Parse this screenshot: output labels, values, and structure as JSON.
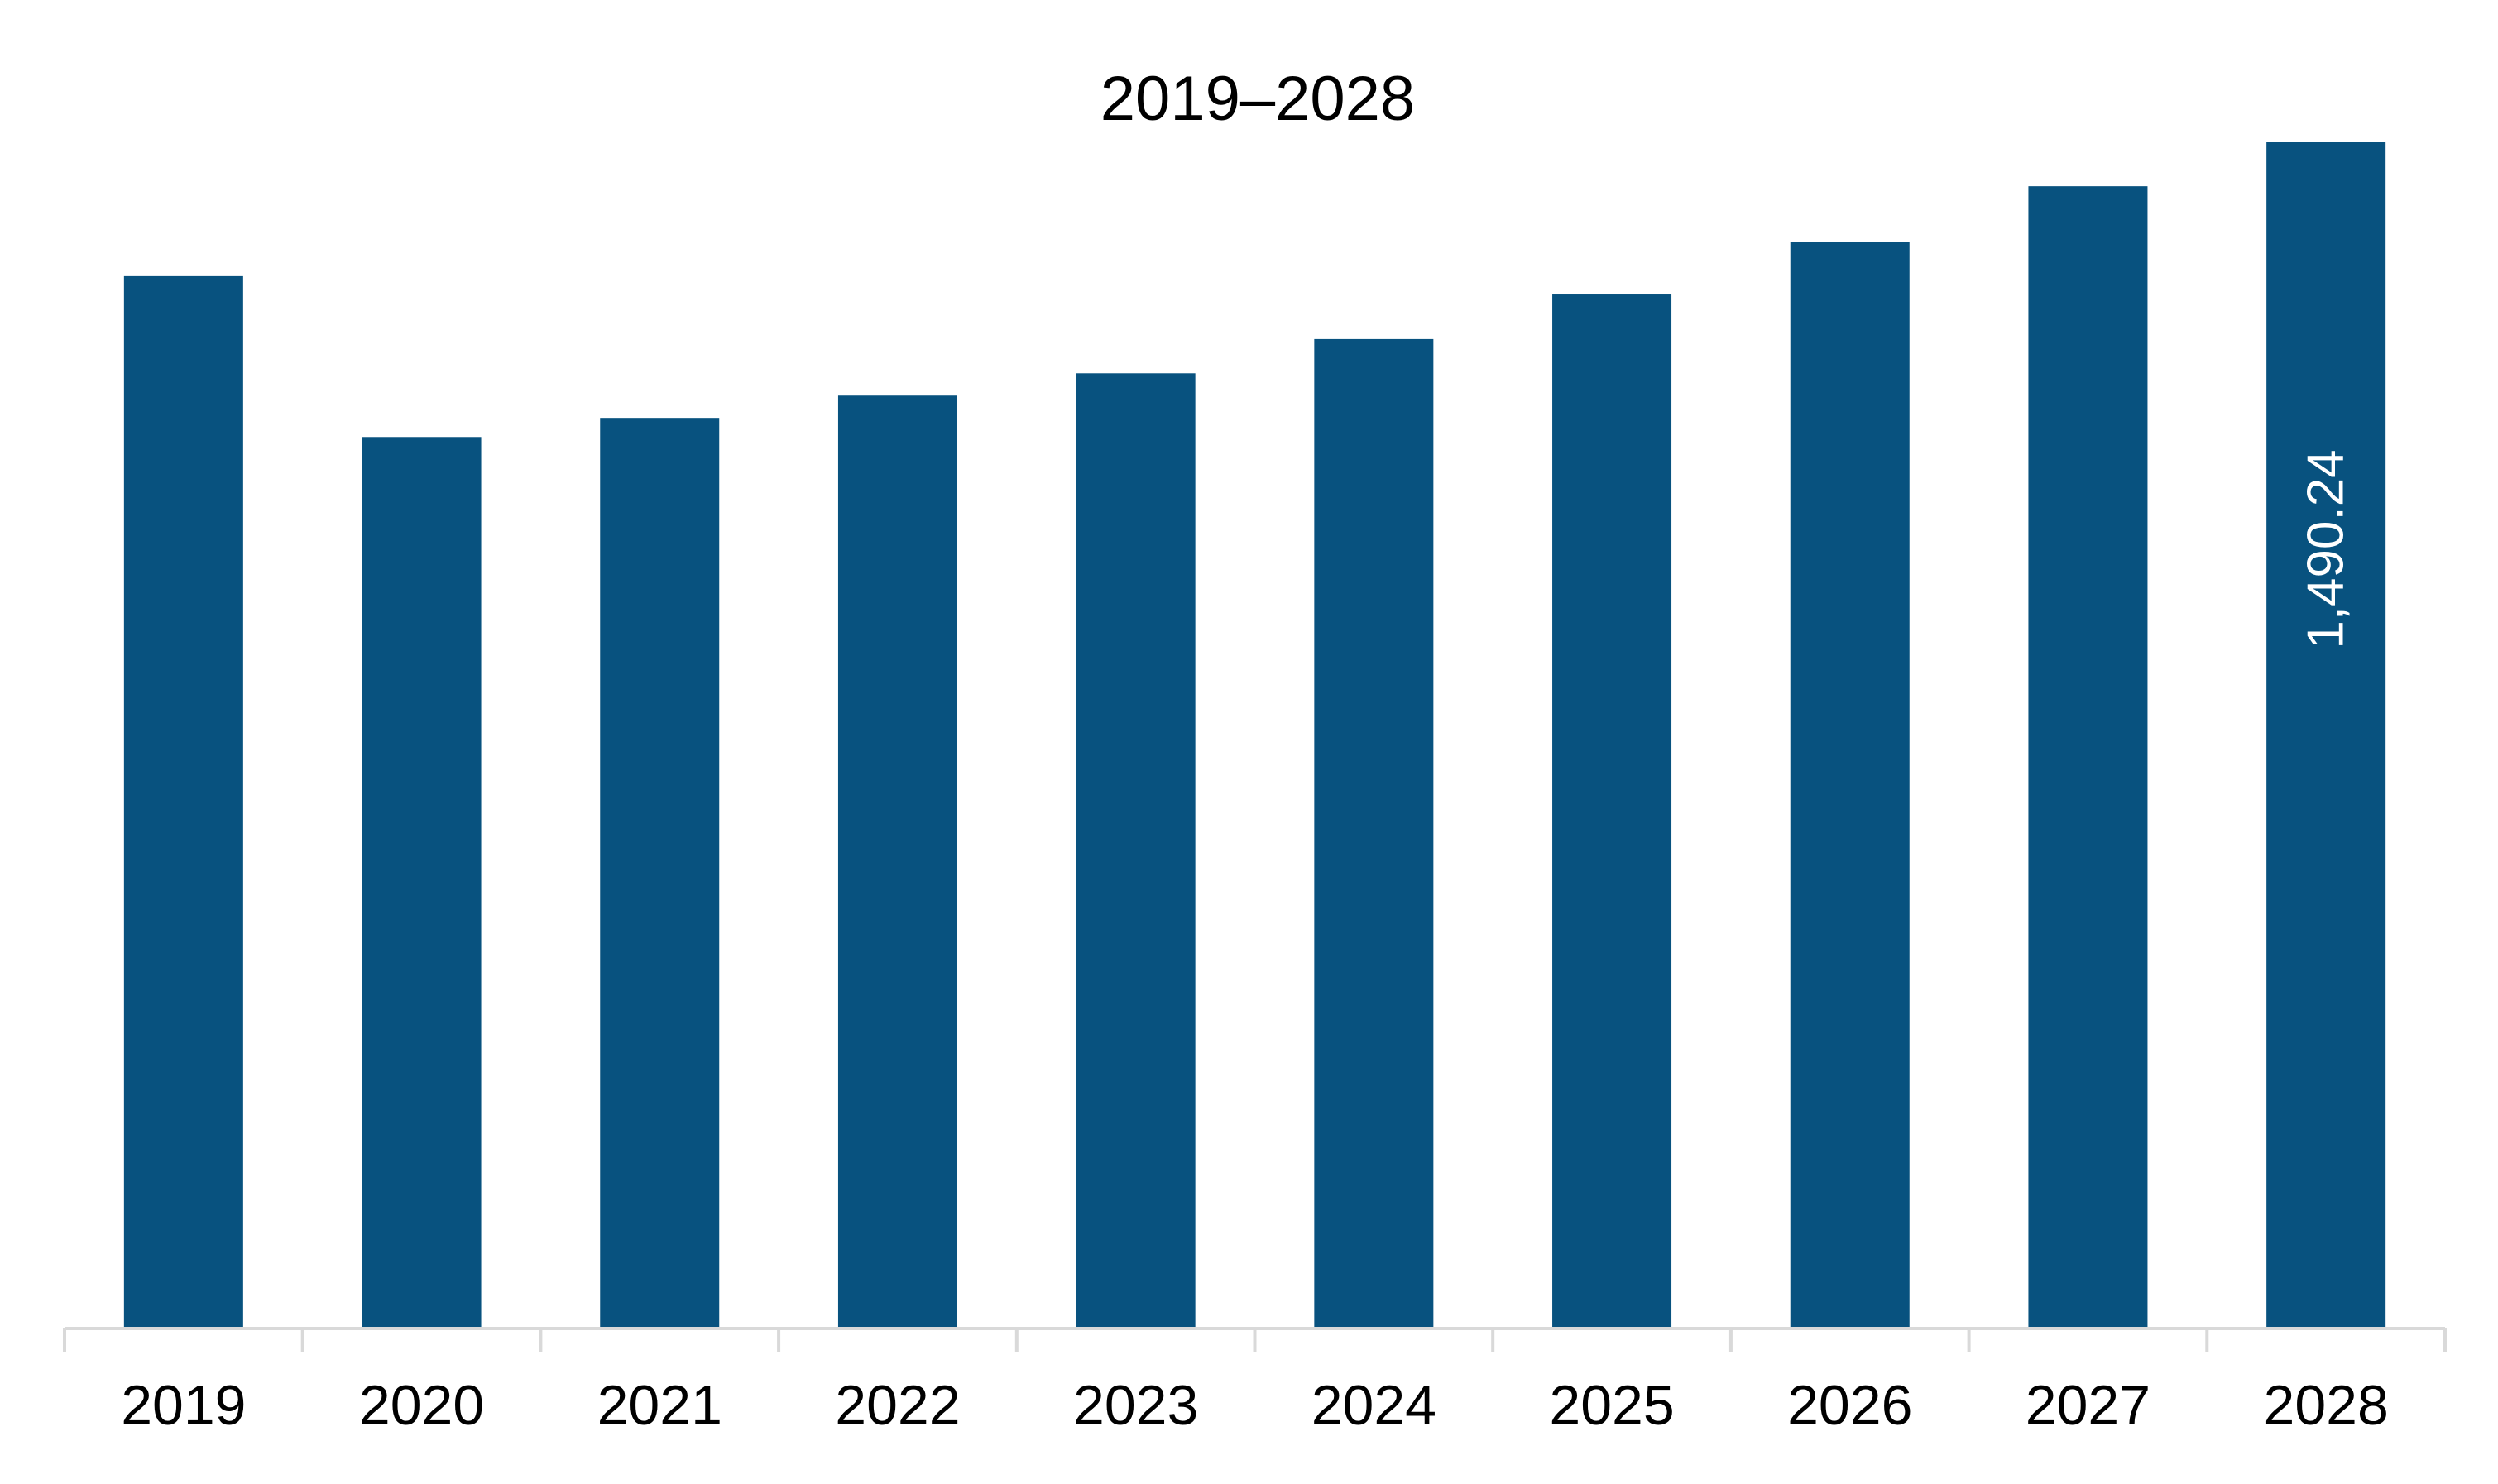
{
  "chart_data": {
    "type": "bar",
    "title": "2019–2028",
    "xlabel": "",
    "ylabel": "",
    "categories": [
      "2019",
      "2020",
      "2021",
      "2022",
      "2023",
      "2024",
      "2025",
      "2026",
      "2027",
      "2028"
    ],
    "values": [
      1322,
      1120,
      1144,
      1172,
      1200,
      1243,
      1299,
      1365,
      1435,
      1490.24
    ],
    "data_labels": [
      "",
      "",
      "",
      "",
      "",
      "",
      "",
      "",
      "",
      "1,490.24"
    ],
    "ylim": [
      0,
      1490.24
    ],
    "grid": false,
    "legend": "none",
    "bar_color": "#08527f",
    "axis_color": "#d9d9d9"
  }
}
